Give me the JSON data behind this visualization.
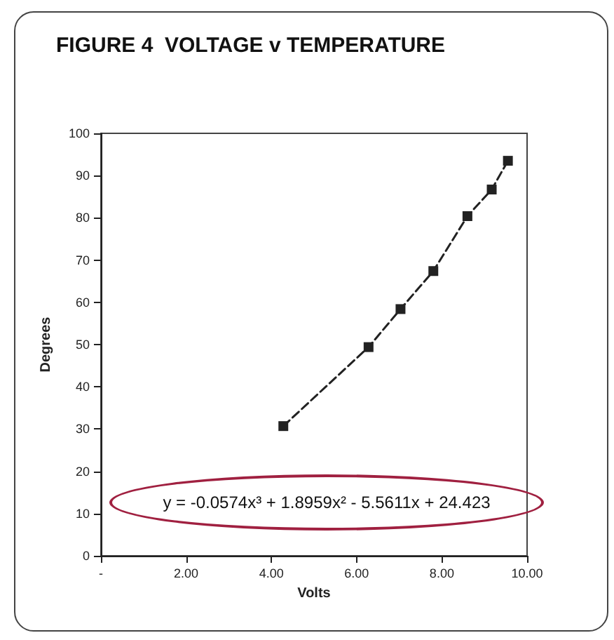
{
  "chart_data": {
    "type": "line",
    "title": "FIGURE 4  VOLTAGE v TEMPERATURE",
    "xlabel": "Volts",
    "ylabel": "Degrees",
    "annotations": [
      "y = -0.0574x³ + 1.8959x² - 5.5611x + 24.423"
    ],
    "x": [
      4.28,
      6.28,
      7.03,
      7.8,
      8.6,
      9.17,
      9.55
    ],
    "series": [
      {
        "color": "#222222",
        "values": [
          30.7,
          49.4,
          58.4,
          67.4,
          80.4,
          86.7,
          93.5
        ]
      }
    ],
    "xlim": [
      0,
      10
    ],
    "xticks": [
      {
        "value": 0,
        "label": "-"
      },
      {
        "value": 2,
        "label": "2.00"
      },
      {
        "value": 4,
        "label": "4.00"
      },
      {
        "value": 6,
        "label": "6.00"
      },
      {
        "value": 8,
        "label": "8.00"
      },
      {
        "value": 10,
        "label": "10.00"
      }
    ],
    "ylim": [
      0,
      100
    ],
    "yticks": [
      0,
      10,
      20,
      30,
      40,
      50,
      60,
      70,
      80,
      90,
      100
    ],
    "grid": false,
    "marker": "square",
    "line_style": "dashed"
  }
}
